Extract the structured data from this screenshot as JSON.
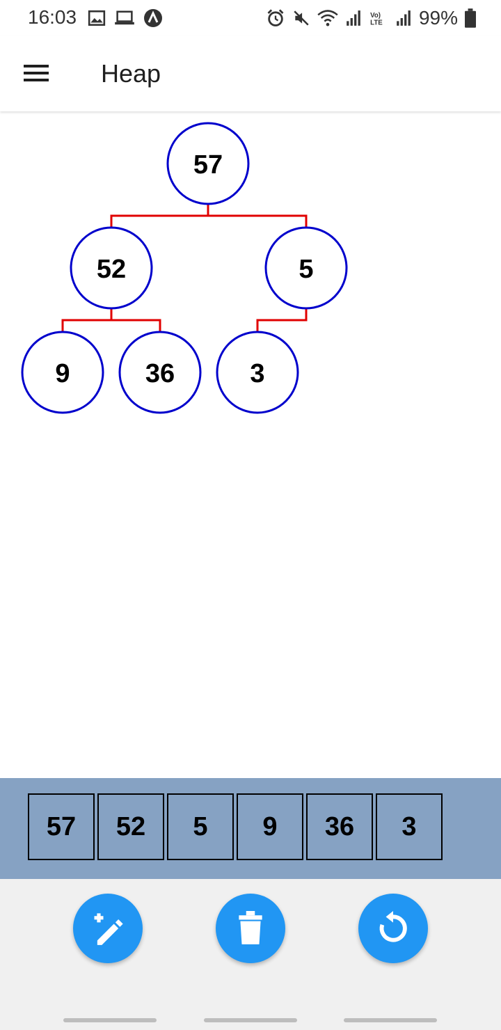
{
  "status_bar": {
    "time": "16:03",
    "battery": "99%",
    "left_icons": [
      "image-icon",
      "laptop-icon",
      "app-a-icon"
    ],
    "right_icons": [
      "alarm-icon",
      "mute-icon",
      "wifi-icon",
      "signal-icon",
      "volte-icon",
      "signal-icon",
      "battery-icon"
    ]
  },
  "app_bar": {
    "title": "Heap",
    "menu_icon": "hamburger-menu-icon"
  },
  "heap": {
    "values": [
      "57",
      "52",
      "5",
      "9",
      "36",
      "3"
    ]
  },
  "colors": {
    "node_stroke": "#0000cc",
    "edge": "#e00000",
    "array_bg": "#86a2c3",
    "fab": "#2196f3",
    "bottom_bg": "#f0f0f0"
  },
  "actions": [
    {
      "icon": "magic-wand-add-icon"
    },
    {
      "icon": "trash-icon"
    },
    {
      "icon": "reset-icon"
    }
  ]
}
